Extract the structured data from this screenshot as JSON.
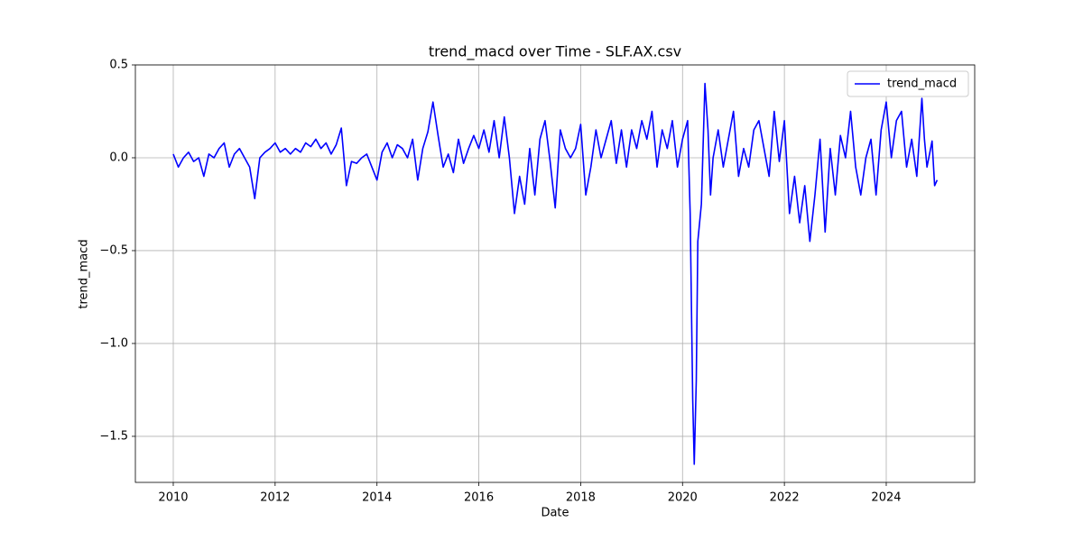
{
  "chart_data": {
    "type": "line",
    "title": "trend_macd over Time - SLF.AX.csv",
    "x_label": "Date",
    "y_label": "trend_macd",
    "x": [
      2010.0,
      2010.1,
      2010.2,
      2010.3,
      2010.4,
      2010.5,
      2010.6,
      2010.7,
      2010.8,
      2010.9,
      2011.0,
      2011.1,
      2011.2,
      2011.3,
      2011.4,
      2011.5,
      2011.6,
      2011.7,
      2011.8,
      2011.9,
      2012.0,
      2012.1,
      2012.2,
      2012.3,
      2012.4,
      2012.5,
      2012.6,
      2012.7,
      2012.8,
      2012.9,
      2013.0,
      2013.1,
      2013.2,
      2013.3,
      2013.4,
      2013.5,
      2013.6,
      2013.7,
      2013.8,
      2013.9,
      2014.0,
      2014.1,
      2014.2,
      2014.3,
      2014.4,
      2014.5,
      2014.6,
      2014.7,
      2014.8,
      2014.9,
      2015.0,
      2015.1,
      2015.2,
      2015.3,
      2015.4,
      2015.5,
      2015.6,
      2015.7,
      2015.8,
      2015.9,
      2016.0,
      2016.1,
      2016.2,
      2016.3,
      2016.4,
      2016.5,
      2016.6,
      2016.7,
      2016.8,
      2016.9,
      2017.0,
      2017.1,
      2017.2,
      2017.3,
      2017.4,
      2017.5,
      2017.6,
      2017.7,
      2017.8,
      2017.9,
      2018.0,
      2018.1,
      2018.2,
      2018.3,
      2018.4,
      2018.5,
      2018.6,
      2018.7,
      2018.8,
      2018.9,
      2019.0,
      2019.1,
      2019.2,
      2019.3,
      2019.4,
      2019.5,
      2019.6,
      2019.7,
      2019.8,
      2019.9,
      2020.0,
      2020.1,
      2020.15,
      2020.2,
      2020.23,
      2020.27,
      2020.3,
      2020.37,
      2020.44,
      2020.5,
      2020.55,
      2020.6,
      2020.7,
      2020.8,
      2020.9,
      2021.0,
      2021.1,
      2021.2,
      2021.3,
      2021.4,
      2021.5,
      2021.6,
      2021.7,
      2021.8,
      2021.9,
      2022.0,
      2022.1,
      2022.2,
      2022.3,
      2022.4,
      2022.5,
      2022.6,
      2022.7,
      2022.8,
      2022.9,
      2023.0,
      2023.1,
      2023.2,
      2023.3,
      2023.4,
      2023.5,
      2023.6,
      2023.7,
      2023.8,
      2023.9,
      2024.0,
      2024.1,
      2024.2,
      2024.3,
      2024.4,
      2024.5,
      2024.6,
      2024.7,
      2024.75,
      2024.8,
      2024.9,
      2024.95,
      2025.0
    ],
    "series": [
      {
        "name": "trend_macd",
        "color": "#0000ff",
        "values": [
          0.02,
          -0.05,
          0.0,
          0.03,
          -0.02,
          0.0,
          -0.1,
          0.02,
          0.0,
          0.05,
          0.08,
          -0.05,
          0.02,
          0.05,
          0.0,
          -0.05,
          -0.22,
          0.0,
          0.03,
          0.05,
          0.08,
          0.03,
          0.05,
          0.02,
          0.05,
          0.03,
          0.08,
          0.06,
          0.1,
          0.05,
          0.08,
          0.02,
          0.07,
          0.16,
          -0.15,
          -0.02,
          -0.03,
          0.0,
          0.02,
          -0.05,
          -0.12,
          0.03,
          0.08,
          0.0,
          0.07,
          0.05,
          0.0,
          0.1,
          -0.12,
          0.05,
          0.14,
          0.3,
          0.12,
          -0.05,
          0.02,
          -0.08,
          0.1,
          -0.03,
          0.05,
          0.12,
          0.05,
          0.15,
          0.03,
          0.2,
          0.0,
          0.22,
          0.0,
          -0.3,
          -0.1,
          -0.25,
          0.05,
          -0.2,
          0.1,
          0.2,
          -0.02,
          -0.27,
          0.15,
          0.05,
          0.0,
          0.05,
          0.18,
          -0.2,
          -0.05,
          0.15,
          0.0,
          0.1,
          0.2,
          -0.03,
          0.15,
          -0.05,
          0.15,
          0.05,
          0.2,
          0.1,
          0.25,
          -0.05,
          0.15,
          0.05,
          0.2,
          -0.05,
          0.1,
          0.2,
          -0.3,
          -1.3,
          -1.65,
          -1.2,
          -0.45,
          -0.25,
          0.4,
          0.15,
          -0.2,
          0.0,
          0.15,
          -0.05,
          0.1,
          0.25,
          -0.1,
          0.05,
          -0.05,
          0.15,
          0.2,
          0.05,
          -0.1,
          0.25,
          -0.02,
          0.2,
          -0.3,
          -0.1,
          -0.35,
          -0.15,
          -0.45,
          -0.2,
          0.1,
          -0.4,
          0.05,
          -0.2,
          0.12,
          0.0,
          0.25,
          -0.05,
          -0.2,
          0.0,
          0.1,
          -0.2,
          0.15,
          0.3,
          0.0,
          0.2,
          0.25,
          -0.05,
          0.1,
          -0.1,
          0.32,
          0.1,
          -0.05,
          0.09,
          -0.15,
          -0.12
        ]
      }
    ],
    "xlim": [
      2009.256,
      2025.737
    ],
    "xticks": [
      2010,
      2012,
      2014,
      2016,
      2018,
      2020,
      2022,
      2024
    ],
    "ylim": [
      -1.748,
      0.5
    ],
    "yticks": [
      {
        "value": -1.5,
        "label": "−1.5"
      },
      {
        "value": -1.0,
        "label": "−1.0"
      },
      {
        "value": -0.5,
        "label": "−0.5"
      },
      {
        "value": 0.0,
        "label": "0.0"
      },
      {
        "value": 0.5,
        "label": "0.5"
      }
    ],
    "grid": true,
    "legend": "upper right"
  }
}
